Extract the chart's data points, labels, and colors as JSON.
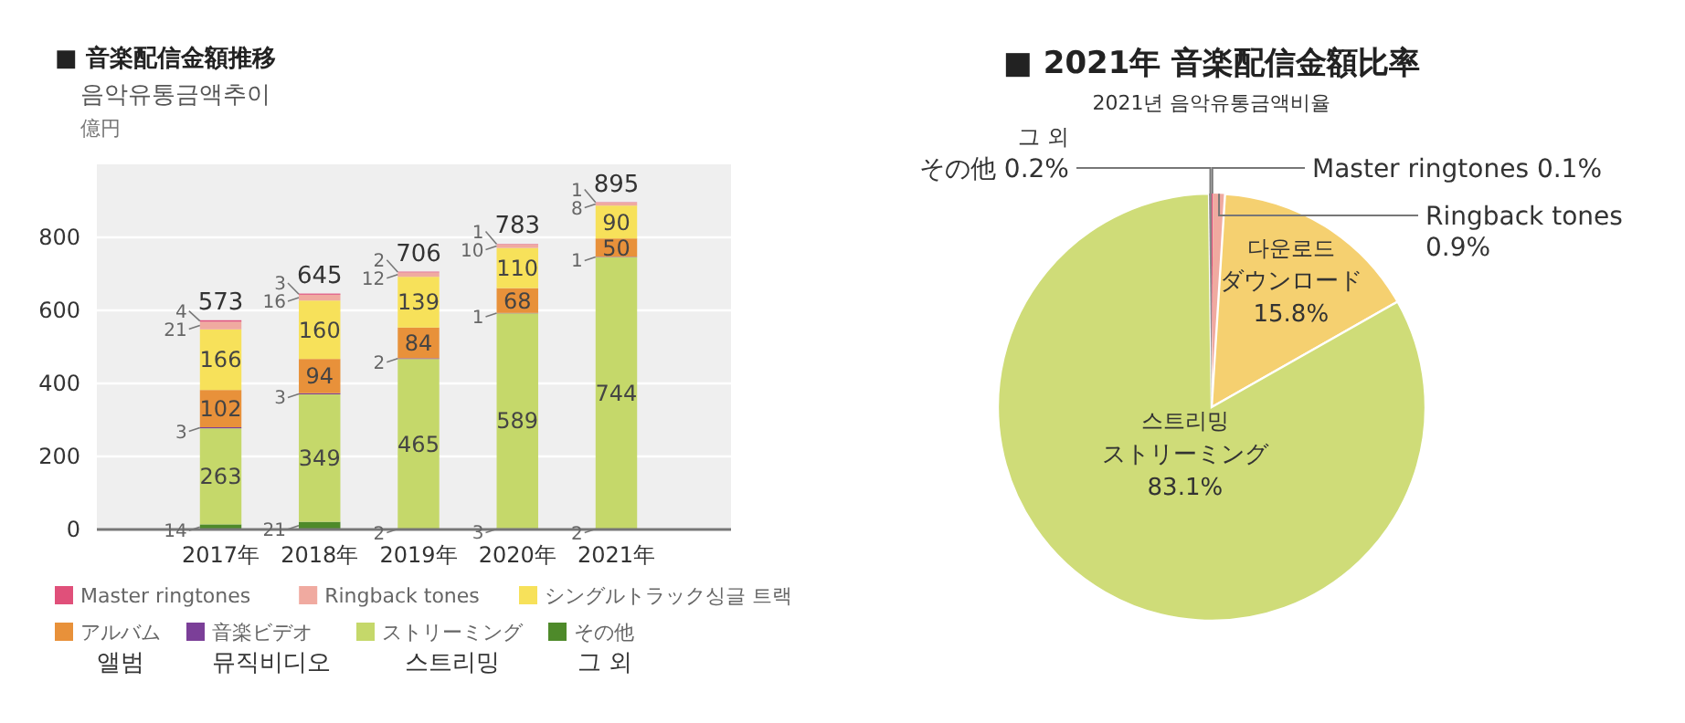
{
  "chart_data": [
    {
      "type": "bar",
      "title": "■ 音楽配信金額推移",
      "subtitle": "음악유통금액추이",
      "ylabel": "億円",
      "categories": [
        "2017年",
        "2018年",
        "2019年",
        "2020年",
        "2021年"
      ],
      "stacked": true,
      "ylim": [
        0,
        1000
      ],
      "yticks": [
        0,
        200,
        400,
        600,
        800
      ],
      "grid": "y",
      "legend": "bottom",
      "data_labels": true,
      "totals": [
        "573",
        "645",
        "706",
        "783",
        "895"
      ],
      "series": [
        {
          "name": "その他\n그 외",
          "color": "#4e8a2a",
          "values": [
            14,
            21,
            2,
            3,
            2
          ]
        },
        {
          "name": "ストリーミング\n스트리밍",
          "color": "#c5d86a",
          "values": [
            263,
            349,
            465,
            589,
            744
          ]
        },
        {
          "name": "音楽ビデオ\n뮤직비디오",
          "color": "#7b3f98",
          "values": [
            3,
            3,
            2,
            1,
            1
          ]
        },
        {
          "name": "アルバム\n앨범",
          "color": "#e8913a",
          "values": [
            102,
            94,
            84,
            68,
            50
          ]
        },
        {
          "name": "シングルトラック싱글 트랙",
          "color": "#f7e15a",
          "values": [
            166,
            160,
            139,
            110,
            90
          ]
        },
        {
          "name": "Ringback tones",
          "color": "#f0aaa0",
          "values": [
            21,
            16,
            12,
            10,
            8
          ]
        },
        {
          "name": "Master ringtones",
          "color": "#e0507a",
          "values": [
            4,
            3,
            2,
            1,
            1
          ]
        }
      ]
    },
    {
      "type": "pie",
      "title": "■ 2021年 音楽配信金額比率",
      "subtitle": "2021년 음악유통금액비율",
      "categories": [
        "Master ringtones",
        "Ringback tones",
        "다운로드\nダウンロード",
        "스트리밍\nストリーミング",
        "그 외\nその他"
      ],
      "values": [
        0.1,
        0.9,
        15.8,
        83.1,
        0.2
      ],
      "colors": [
        "#e0507a",
        "#f0aaa0",
        "#f5d070",
        "#cfdc78",
        "#8a8a8a"
      ],
      "value_labels": [
        "0.1%",
        "0.9%",
        "15.8%",
        "83.1%",
        "0.2%"
      ]
    }
  ]
}
